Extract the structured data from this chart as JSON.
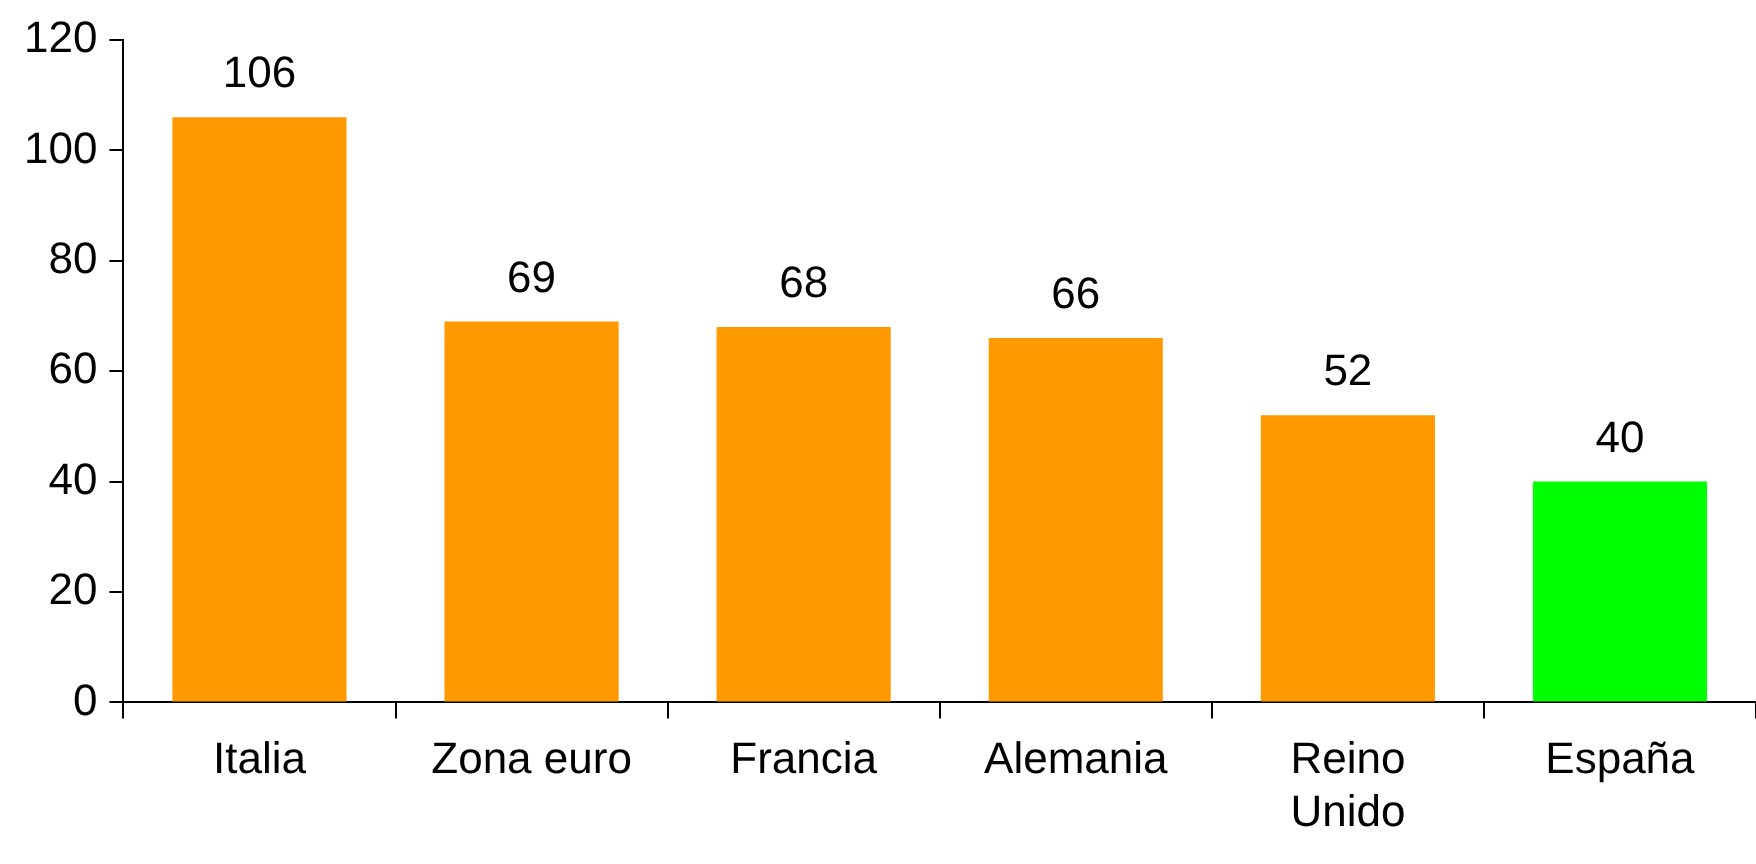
{
  "chart_data": {
    "type": "bar",
    "categories": [
      "Italia",
      "Zona euro",
      "Francia",
      "Alemania",
      "Reino\nUnido",
      "España"
    ],
    "values": [
      106,
      69,
      68,
      66,
      52,
      40
    ],
    "colors": [
      "#ff9900",
      "#ff9900",
      "#ff9900",
      "#ff9900",
      "#ff9900",
      "#00ff00"
    ],
    "ylim": [
      0,
      120
    ],
    "yticks": [
      0,
      20,
      40,
      60,
      80,
      100,
      120
    ],
    "grid": false,
    "legend": false,
    "data_labels": true
  }
}
